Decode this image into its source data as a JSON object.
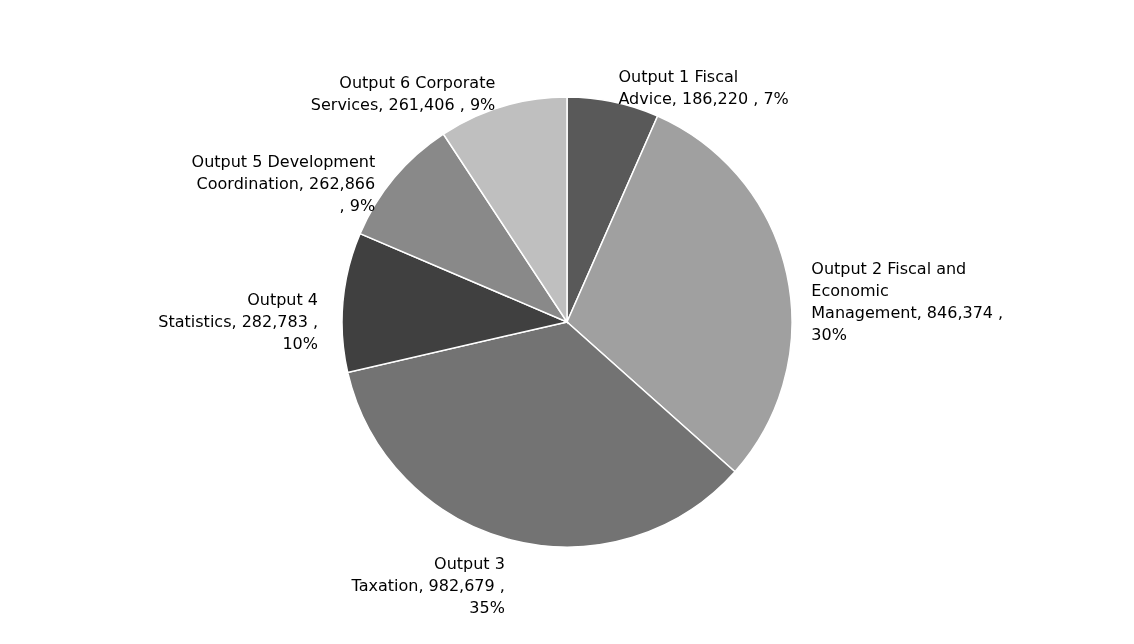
{
  "chart_data": {
    "type": "pie",
    "categories": [
      "Output 1 Fiscal Advice",
      "Output 2 Fiscal and Economic Management",
      "Output 3 Taxation",
      "Output 4 Statistics",
      "Output 5 Development Coordination",
      "Output 6 Corporate Services"
    ],
    "values": [
      186220,
      846374,
      982679,
      282783,
      262866,
      261406
    ],
    "value_labels": [
      "186,220 , 7%",
      "846,374 , 30%",
      "982,679 , 35%",
      "282,783 , 10%",
      "262,866 , 9%",
      "261,406 , 9%"
    ],
    "colors": [
      "#595959",
      "#a0a0a0",
      "#737373",
      "#404040",
      "#898989",
      "#bfbfbf"
    ]
  }
}
